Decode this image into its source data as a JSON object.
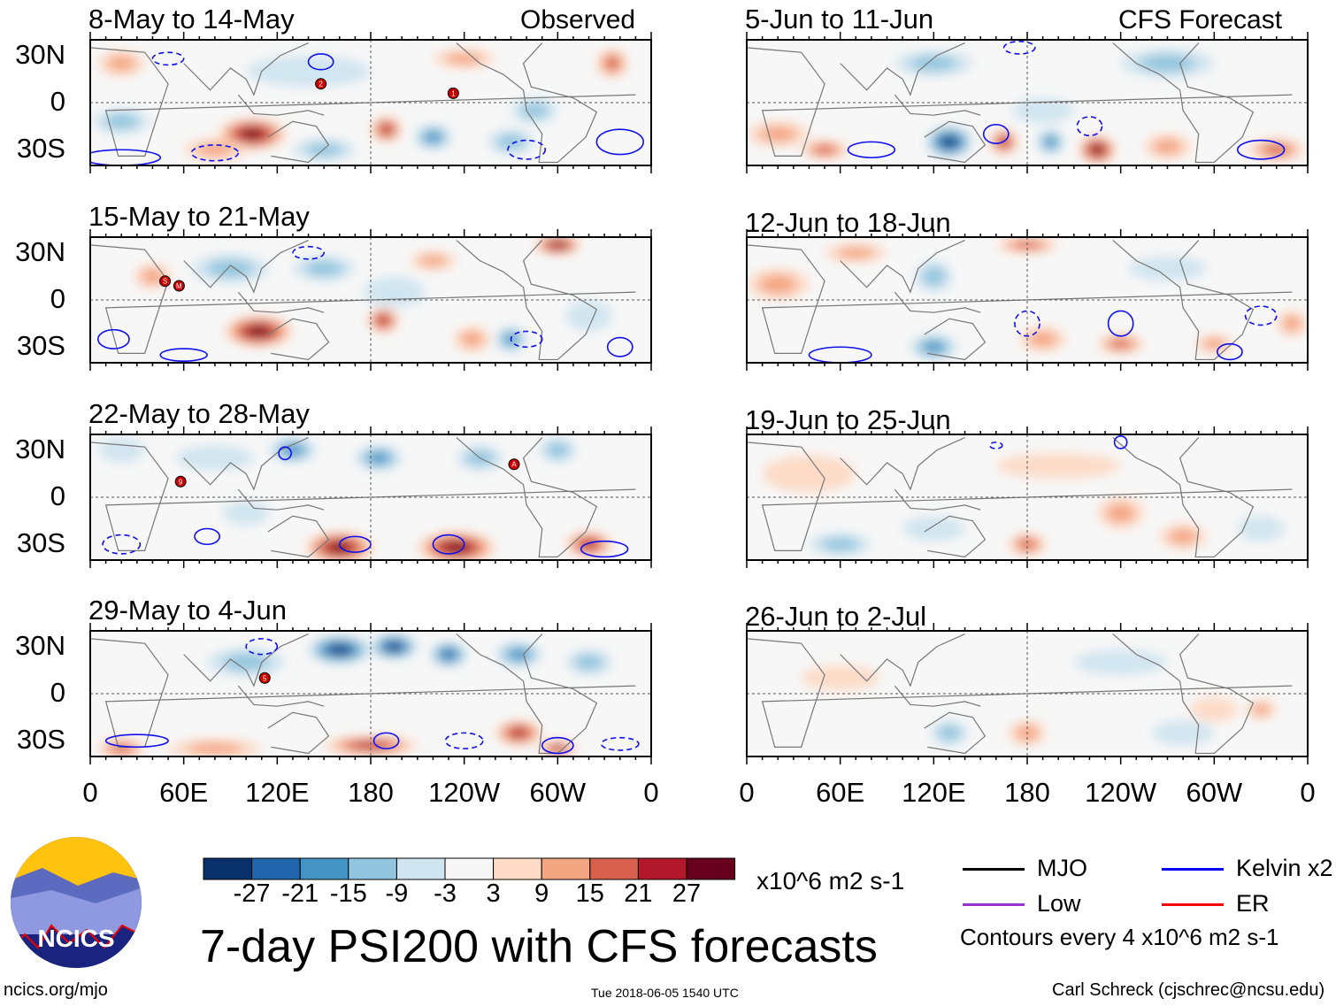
{
  "header": {
    "left_label": "Observed",
    "right_label": "CFS Forecast"
  },
  "panels": [
    {
      "title": "8-May to 14-May",
      "side": "observed",
      "features": [
        [
          104,
          -20,
          27,
          22,
          10
        ],
        [
          190,
          -17,
          21,
          10,
          8
        ],
        [
          220,
          -22,
          -15,
          12,
          8
        ],
        [
          335,
          25,
          15,
          10,
          9
        ],
        [
          285,
          -5,
          -9,
          15,
          8
        ],
        [
          20,
          -12,
          -9,
          18,
          8
        ],
        [
          80,
          -30,
          9,
          20,
          7
        ],
        [
          150,
          -30,
          -9,
          20,
          7
        ],
        [
          20,
          25,
          9,
          15,
          8
        ],
        [
          270,
          -25,
          -9,
          15,
          8
        ],
        [
          140,
          20,
          -3,
          40,
          10
        ],
        [
          240,
          28,
          9,
          20,
          6
        ]
      ],
      "contours": [
        [
          148,
          26,
          8,
          5,
          1
        ],
        [
          340,
          -25,
          15,
          8,
          1
        ],
        [
          20,
          -35,
          25,
          5,
          1
        ],
        [
          80,
          -32,
          15,
          5,
          0
        ],
        [
          280,
          -30,
          12,
          6,
          0
        ],
        [
          50,
          28,
          10,
          4,
          0
        ]
      ],
      "storms": [
        [
          "2",
          148,
          12
        ],
        [
          "1",
          233,
          6
        ]
      ]
    },
    {
      "title": "15-May to 21-May",
      "side": "observed",
      "features": [
        [
          108,
          -20,
          27,
          22,
          10
        ],
        [
          188,
          -13,
          21,
          10,
          8
        ],
        [
          245,
          -25,
          9,
          12,
          8
        ],
        [
          270,
          -25,
          -15,
          10,
          8
        ],
        [
          90,
          20,
          -9,
          25,
          9
        ],
        [
          150,
          20,
          -9,
          20,
          8
        ],
        [
          195,
          5,
          -3,
          20,
          10
        ],
        [
          300,
          35,
          27,
          15,
          6
        ],
        [
          40,
          15,
          9,
          12,
          8
        ],
        [
          220,
          25,
          9,
          15,
          6
        ],
        [
          320,
          -10,
          -3,
          15,
          10
        ]
      ],
      "contours": [
        [
          15,
          -25,
          10,
          6,
          1
        ],
        [
          140,
          30,
          10,
          4,
          0
        ],
        [
          280,
          -25,
          10,
          5,
          0
        ],
        [
          340,
          -30,
          8,
          6,
          1
        ],
        [
          60,
          -35,
          15,
          4,
          1
        ]
      ],
      "storms": [
        [
          "S",
          48,
          12
        ],
        [
          "M",
          57,
          9
        ]
      ]
    },
    {
      "title": "22-May to 28-May",
      "side": "observed",
      "features": [
        [
          160,
          -32,
          27,
          22,
          10
        ],
        [
          235,
          -32,
          27,
          25,
          10
        ],
        [
          320,
          -30,
          21,
          15,
          8
        ],
        [
          130,
          30,
          -15,
          15,
          8
        ],
        [
          185,
          25,
          -15,
          15,
          8
        ],
        [
          250,
          25,
          -9,
          15,
          8
        ],
        [
          80,
          25,
          -3,
          25,
          8
        ],
        [
          300,
          30,
          -9,
          12,
          8
        ],
        [
          20,
          30,
          -3,
          15,
          8
        ],
        [
          100,
          -10,
          -3,
          15,
          8
        ]
      ],
      "contours": [
        [
          75,
          -25,
          8,
          5,
          1
        ],
        [
          170,
          -30,
          10,
          5,
          1
        ],
        [
          230,
          -30,
          10,
          6,
          1
        ],
        [
          330,
          -33,
          15,
          5,
          1
        ],
        [
          20,
          -30,
          12,
          6,
          0
        ],
        [
          125,
          28,
          4,
          4,
          1
        ]
      ],
      "storms": [
        "A",
        272,
        21
      ],
      "storms_list": [
        [
          "9",
          58,
          10
        ],
        [
          "A",
          272,
          21
        ]
      ]
    },
    {
      "title": "29-May to 4-Jun",
      "side": "observed",
      "features": [
        [
          160,
          28,
          -27,
          20,
          9
        ],
        [
          195,
          30,
          -27,
          15,
          8
        ],
        [
          230,
          25,
          -21,
          12,
          8
        ],
        [
          275,
          25,
          -15,
          15,
          8
        ],
        [
          100,
          20,
          -9,
          25,
          9
        ],
        [
          320,
          20,
          -9,
          15,
          8
        ],
        [
          180,
          -33,
          21,
          30,
          6
        ],
        [
          275,
          -25,
          21,
          15,
          8
        ],
        [
          80,
          -35,
          9,
          30,
          6
        ],
        [
          20,
          -35,
          15,
          15,
          6
        ],
        [
          300,
          -35,
          21,
          12,
          5
        ]
      ],
      "contours": [
        [
          110,
          30,
          10,
          5,
          0
        ],
        [
          190,
          -30,
          8,
          5,
          1
        ],
        [
          240,
          -30,
          12,
          5,
          0
        ],
        [
          300,
          -33,
          10,
          5,
          1
        ],
        [
          30,
          -30,
          20,
          4,
          1
        ],
        [
          340,
          -32,
          12,
          4,
          0
        ]
      ],
      "storms": [
        [
          "5",
          112,
          10
        ]
      ]
    },
    {
      "title": "5-Jun to 11-Jun",
      "side": "forecast",
      "features": [
        [
          130,
          -25,
          -27,
          15,
          10
        ],
        [
          165,
          -25,
          21,
          9,
          8
        ],
        [
          195,
          -25,
          -15,
          9,
          8
        ],
        [
          225,
          -30,
          27,
          12,
          9
        ],
        [
          270,
          -28,
          9,
          15,
          8
        ],
        [
          340,
          -30,
          15,
          18,
          7
        ],
        [
          20,
          -20,
          9,
          20,
          8
        ],
        [
          50,
          -30,
          15,
          15,
          6
        ],
        [
          270,
          25,
          -9,
          30,
          9
        ],
        [
          120,
          25,
          -9,
          25,
          8
        ],
        [
          190,
          -5,
          -3,
          20,
          8
        ]
      ],
      "contours": [
        [
          80,
          -30,
          15,
          5,
          1
        ],
        [
          160,
          -20,
          8,
          6,
          1
        ],
        [
          220,
          -15,
          8,
          6,
          0
        ],
        [
          330,
          -30,
          15,
          6,
          1
        ],
        [
          175,
          35,
          10,
          4,
          0
        ]
      ],
      "storms": []
    },
    {
      "title": "12-Jun to 18-Jun",
      "side": "forecast",
      "features": [
        [
          120,
          -30,
          -15,
          15,
          8
        ],
        [
          190,
          -25,
          9,
          15,
          8
        ],
        [
          240,
          -28,
          15,
          15,
          6
        ],
        [
          300,
          -28,
          9,
          12,
          6
        ],
        [
          350,
          -15,
          9,
          10,
          8
        ],
        [
          180,
          35,
          15,
          20,
          5
        ],
        [
          120,
          15,
          -9,
          12,
          10
        ],
        [
          20,
          10,
          9,
          20,
          10
        ],
        [
          70,
          30,
          9,
          20,
          6
        ],
        [
          270,
          20,
          -3,
          25,
          8
        ]
      ],
      "contours": [
        [
          240,
          -15,
          8,
          8,
          1
        ],
        [
          60,
          -35,
          20,
          5,
          1
        ],
        [
          180,
          -15,
          8,
          8,
          0
        ],
        [
          330,
          -10,
          10,
          6,
          0
        ],
        [
          310,
          -33,
          8,
          5,
          1
        ]
      ],
      "storms": []
    },
    {
      "title": "19-Jun to 25-Jun",
      "side": "forecast",
      "features": [
        [
          60,
          -30,
          -9,
          20,
          7
        ],
        [
          180,
          -30,
          15,
          12,
          7
        ],
        [
          120,
          -20,
          -3,
          20,
          8
        ],
        [
          240,
          -10,
          9,
          15,
          10
        ],
        [
          280,
          -25,
          9,
          15,
          8
        ],
        [
          330,
          -20,
          -3,
          15,
          8
        ],
        [
          40,
          15,
          3,
          30,
          12
        ],
        [
          200,
          20,
          3,
          40,
          8
        ]
      ],
      "contours": [
        [
          240,
          35,
          4,
          4,
          1
        ],
        [
          160,
          33,
          4,
          2,
          0
        ]
      ],
      "storms": []
    },
    {
      "title": "26-Jun to 2-Jul",
      "side": "forecast",
      "features": [
        [
          180,
          -25,
          9,
          12,
          8
        ],
        [
          130,
          -25,
          -9,
          12,
          8
        ],
        [
          240,
          20,
          -3,
          30,
          8
        ],
        [
          300,
          -10,
          3,
          15,
          8
        ],
        [
          330,
          -10,
          9,
          10,
          6
        ],
        [
          60,
          10,
          3,
          25,
          8
        ],
        [
          280,
          -25,
          -3,
          20,
          8
        ]
      ],
      "contours": [],
      "storms": []
    }
  ],
  "axes": {
    "y_ticks": [
      "30N",
      "0",
      "30S"
    ],
    "x_ticks": [
      "0",
      "60E",
      "120E",
      "180",
      "120W",
      "60W",
      "0"
    ]
  },
  "colorbar": {
    "labels": [
      "-27",
      "-21",
      "-15",
      "-9",
      "-3",
      "3",
      "9",
      "15",
      "21",
      "27"
    ],
    "colors": [
      "#08306b",
      "#2166ac",
      "#4393c3",
      "#92c5de",
      "#d1e5f0",
      "#f7f7f7",
      "#fddbc7",
      "#f4a582",
      "#d6604d",
      "#b2182b",
      "#67001f"
    ],
    "units": "x10^6 m2 s-1"
  },
  "legend": {
    "items": [
      {
        "label": "MJO",
        "color": "#000000"
      },
      {
        "label": "Kelvin x2",
        "color": "#0000ff"
      },
      {
        "label": "Low",
        "color": "#9933cc"
      },
      {
        "label": "ER",
        "color": "#ff0000"
      }
    ],
    "note": "Contours every 4 x10^6 m2 s-1"
  },
  "footer": {
    "title": "7-day PSI200 with CFS forecasts",
    "url": "ncics.org/mjo",
    "timestamp": "Tue 2018-06-05 1540 UTC",
    "author": "Carl Schreck (cjschrec@ncsu.edu)",
    "logo_text": "NCICS"
  }
}
